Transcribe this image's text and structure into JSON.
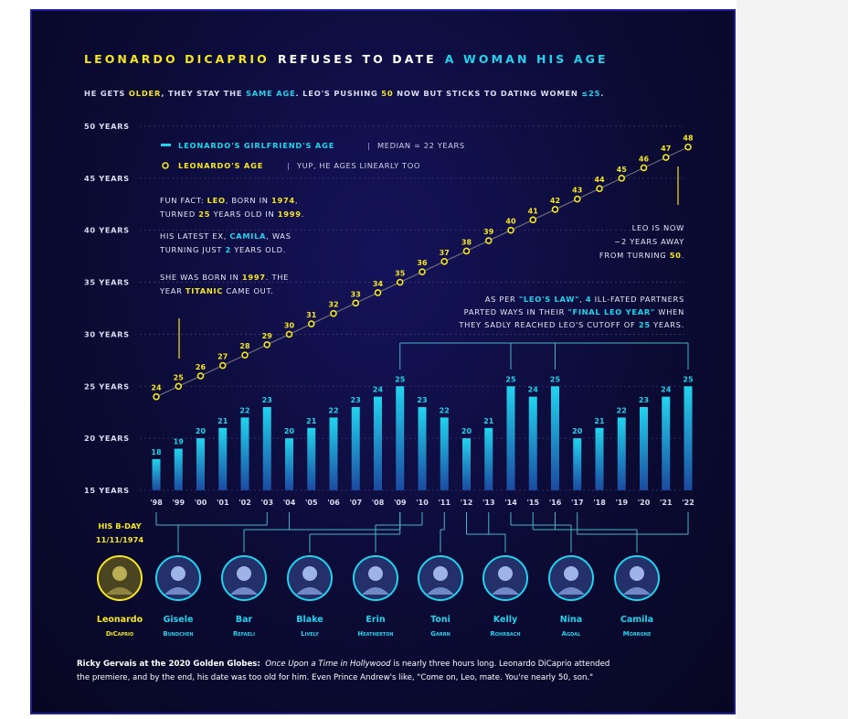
{
  "colors": {
    "yellow": "#f5e623",
    "cyan": "#22d3ee",
    "white": "#ffffff",
    "grey": "#cfd3e6",
    "bg": "#0a0a2e",
    "connector": "#4ab3c6"
  },
  "title": {
    "part1": "LEONARDO DICAPRIO",
    "part2": "REFUSES TO DATE",
    "part3": "A WOMAN HIS AGE"
  },
  "subtitle": {
    "s1": "HE GETS ",
    "s2": "OLDER",
    "s3": ", THEY STAY THE ",
    "s4": "SAME AGE",
    "s5": ". LEO'S PUSHING ",
    "s6": "50",
    "s7": " NOW BUT STICKS TO DATING WOMEN ",
    "s8": "≤25",
    "s9": "."
  },
  "legend": {
    "girlfriend_label": "LEONARDO'S GIRLFRIEND'S AGE",
    "girlfriend_note": "MEDIAN = 22 YEARS",
    "leo_label": "LEONARDO'S AGE",
    "leo_note": "YUP, HE AGES LINEARLY TOO"
  },
  "annotations": {
    "fun_fact_1a": "FUN FACT: ",
    "fun_fact_1b": "LEO",
    "fun_fact_1c": ", BORN IN ",
    "fun_fact_1d": "1974",
    "fun_fact_1e": ",",
    "fun_fact_2a": "TURNED ",
    "fun_fact_2b": "25",
    "fun_fact_2c": " YEARS OLD IN ",
    "fun_fact_2d": "1999",
    "fun_fact_2e": ".",
    "camila_1a": "HIS LATEST EX, ",
    "camila_1b": "CAMILA",
    "camila_1c": ", WAS",
    "camila_2a": "TURNING JUST ",
    "camila_2b": "2",
    "camila_2c": " YEARS OLD.",
    "born_1a": "SHE WAS BORN IN ",
    "born_1b": "1997",
    "born_1c": ". THE",
    "born_2a": "YEAR ",
    "born_2b": "TITANIC",
    "born_2c": " CAME OUT.",
    "leo_now_1": "LEO IS NOW",
    "leo_now_2": "~2 YEARS AWAY",
    "leo_now_3a": "FROM TURNING ",
    "leo_now_3b": "50",
    "leo_now_3c": ".",
    "law_1a": "AS PER ",
    "law_1b": "\"LEO'S LAW\"",
    "law_1c": ", ",
    "law_1d": "4",
    "law_1e": " ILL-FATED PARTNERS",
    "law_2a": "PARTED WAYS IN THEIR ",
    "law_2b": "\"FINAL LEO YEAR\"",
    "law_2c": " WHEN",
    "law_3a": "THEY SADLY REACHED LEO'S CUTOFF OF ",
    "law_3b": "25",
    "law_3c": " YEARS."
  },
  "birthday": {
    "line1": "HIS B-DAY",
    "line2": "11/11/1974"
  },
  "people": [
    {
      "first": "Leonardo",
      "last": "DiCaprio",
      "color": "#f5e623"
    },
    {
      "first": "Gisele",
      "last": "Bundchen",
      "color": "#22d3ee"
    },
    {
      "first": "Bar",
      "last": "Refaeli",
      "color": "#22d3ee"
    },
    {
      "first": "Blake",
      "last": "Lively",
      "color": "#22d3ee"
    },
    {
      "first": "Erin",
      "last": "Heatherton",
      "color": "#22d3ee"
    },
    {
      "first": "Toni",
      "last": "Garrn",
      "color": "#22d3ee"
    },
    {
      "first": "Kelly",
      "last": "Rohrbach",
      "color": "#22d3ee"
    },
    {
      "first": "Nina",
      "last": "Agdal",
      "color": "#22d3ee"
    },
    {
      "first": "Camila",
      "last": "Morrone",
      "color": "#22d3ee"
    }
  ],
  "footer": {
    "speaker": "Ricky Gervais at the 2020 Golden Globes:",
    "film": "Once Upon a Time in Hollywood",
    "text1": " is nearly three hours long. Leonardo DiCaprio attended",
    "text2": "the premiere, and by the end, his date was too old for him.  Even Prince Andrew's like, \"Come on, Leo, mate. You're nearly 50, son.\""
  },
  "chart_data": {
    "type": "bar",
    "categories": [
      "'98",
      "'99",
      "'00",
      "'01",
      "'02",
      "'03",
      "'04",
      "'05",
      "'06",
      "'07",
      "'08",
      "'09",
      "'10",
      "'11",
      "'12",
      "'13",
      "'14",
      "'15",
      "'16",
      "'17",
      "'18",
      "'19",
      "'20",
      "'21",
      "'22"
    ],
    "ytick_labels": [
      "15 YEARS",
      "20 YEARS",
      "25 YEARS",
      "30 YEARS",
      "35 YEARS",
      "40 YEARS",
      "45 YEARS",
      "50 YEARS"
    ],
    "yticks": [
      15,
      20,
      25,
      30,
      35,
      40,
      45,
      50
    ],
    "ylim": [
      15,
      50
    ],
    "series": [
      {
        "name": "LEONARDO'S GIRLFRIEND'S AGE",
        "kind": "bar",
        "color": "#22d3ee",
        "values": [
          18,
          19,
          20,
          21,
          22,
          23,
          20,
          21,
          22,
          23,
          24,
          25,
          23,
          22,
          20,
          21,
          25,
          24,
          25,
          20,
          21,
          22,
          23,
          24,
          25
        ]
      },
      {
        "name": "LEONARDO'S AGE",
        "kind": "line",
        "color": "#f5e623",
        "values": [
          24,
          25,
          26,
          27,
          28,
          29,
          30,
          31,
          32,
          33,
          34,
          35,
          36,
          37,
          38,
          39,
          40,
          41,
          42,
          43,
          44,
          45,
          46,
          47,
          48
        ]
      }
    ],
    "groups": [
      {
        "person": "Gisele",
        "from": 0,
        "to": 5
      },
      {
        "person": "Bar",
        "from": 6,
        "to": 11
      },
      {
        "person": "Blake",
        "from": 11,
        "to": 11
      },
      {
        "person": "Erin",
        "from": 12,
        "to": 12
      },
      {
        "person": "Toni",
        "from": 13,
        "to": 13
      },
      {
        "person": "Kelly",
        "from": 14,
        "to": 15
      },
      {
        "person": "Nina",
        "from": 16,
        "to": 16
      },
      {
        "person": "Camila",
        "from": 17,
        "to": 18
      },
      {
        "person": "Camila",
        "from": 19,
        "to": 24
      }
    ],
    "cutoff_years": [
      "'09",
      "'14",
      "'16",
      "'22"
    ]
  }
}
